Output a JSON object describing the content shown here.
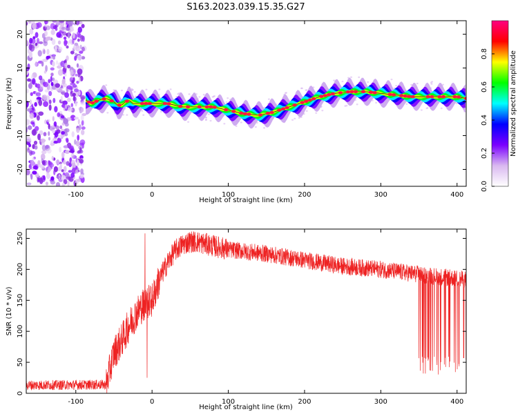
{
  "title": "S163.2023.039.15.35.G27",
  "chart_data": [
    {
      "type": "heatmap",
      "name": "spectrogram",
      "xlabel": "Height of straight line (km)",
      "ylabel": "Frequency (Hz)",
      "xlim": [
        -165,
        412
      ],
      "ylim": [
        -25,
        24
      ],
      "xticks": [
        -100,
        0,
        100,
        200,
        300,
        400
      ],
      "yticks": [
        -20,
        -10,
        0,
        10,
        20
      ],
      "noise_region_x": [
        -165,
        -87
      ],
      "ridge": {
        "x": [
          -87,
          -80,
          -70,
          -60,
          -50,
          -45,
          -40,
          -35,
          -30,
          -25,
          -20,
          -10,
          0,
          20,
          40,
          60,
          80,
          100,
          120,
          140,
          160,
          180,
          200,
          220,
          240,
          260,
          280,
          300,
          320,
          340,
          360,
          380,
          400,
          412
        ],
        "freq": [
          0.5,
          -0.5,
          0.5,
          1.0,
          0.0,
          -1.0,
          -1.0,
          0.0,
          0.5,
          -0.5,
          -0.5,
          -0.5,
          -0.5,
          -0.5,
          -1.5,
          -1.5,
          -1.5,
          -2.5,
          -3.5,
          -4.0,
          -3.0,
          -1.5,
          0.0,
          1.5,
          2.5,
          3.0,
          3.0,
          2.5,
          2.0,
          1.5,
          1.5,
          1.5,
          1.5,
          1.0
        ]
      },
      "colorbar": {
        "label": "Normalized spectral amplitude",
        "ticks": [
          0.0,
          0.2,
          0.4,
          0.6,
          0.8
        ],
        "range": [
          0,
          1
        ],
        "colors": [
          "#ffffff",
          "#d9b8f0",
          "#7a00ff",
          "#0000ff",
          "#00ffff",
          "#00ff00",
          "#ffff00",
          "#ff0000",
          "#ff0080"
        ]
      }
    },
    {
      "type": "line",
      "name": "snr",
      "xlabel": "Height of straight line (km)",
      "ylabel": "SNR (10 * v/v)",
      "xlim": [
        -165,
        412
      ],
      "ylim": [
        0,
        265
      ],
      "xticks": [
        -100,
        0,
        100,
        200,
        300,
        400
      ],
      "yticks": [
        0,
        50,
        100,
        150,
        200,
        250
      ],
      "color": "#ee2222",
      "envelope": {
        "x": [
          -165,
          -60,
          -55,
          -50,
          -40,
          -30,
          -20,
          -10,
          0,
          10,
          20,
          30,
          40,
          50,
          60,
          80,
          100,
          150,
          200,
          250,
          300,
          350,
          400,
          412
        ],
        "mean": [
          13,
          14,
          40,
          65,
          85,
          110,
          130,
          145,
          150,
          185,
          210,
          230,
          240,
          245,
          244,
          238,
          232,
          225,
          215,
          205,
          200,
          192,
          185,
          183
        ]
      },
      "dropouts_x_range": [
        350,
        412
      ],
      "dropout_min": 30
    }
  ]
}
